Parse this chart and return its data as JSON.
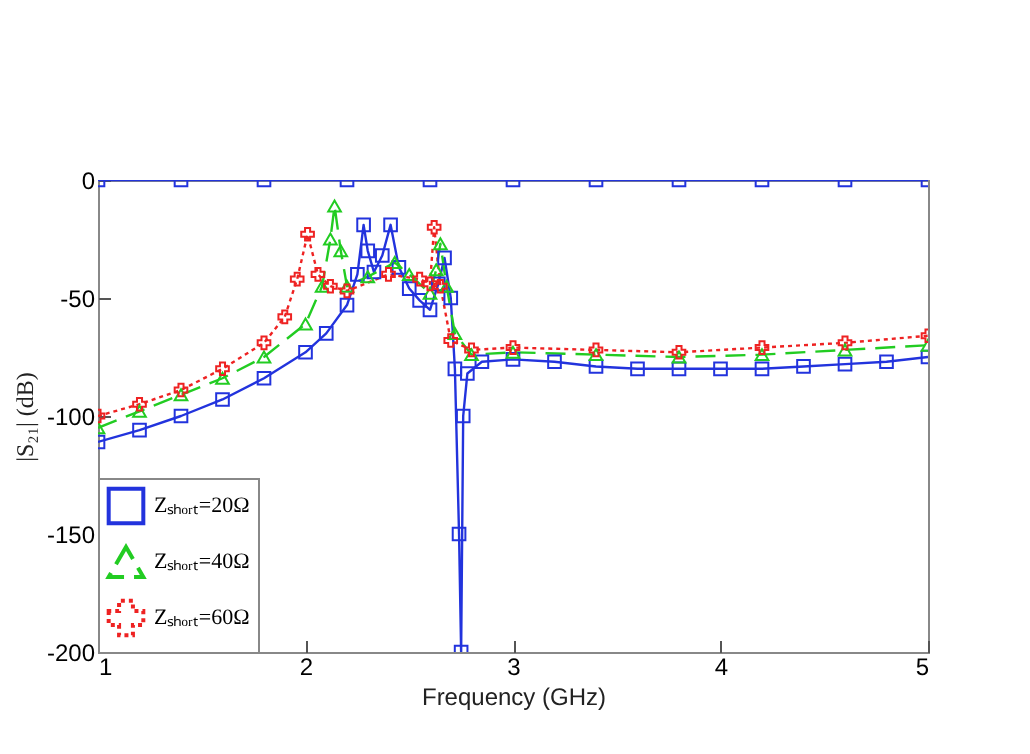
{
  "chart_data": {
    "type": "line",
    "xlabel": "Frequency (GHz)",
    "ylabel": "|S₂₁| (dB)",
    "xlim": [
      1,
      5
    ],
    "xticks": [
      1,
      2,
      3,
      4,
      5
    ],
    "ylim": [
      -200,
      0
    ],
    "yticks": [
      -200,
      -150,
      -100,
      -50,
      0
    ],
    "grid": false,
    "legend": "bottom left",
    "series": [
      {
        "name": "Zₛₕₒᵣₜ=20Ω",
        "color": "#2233dd",
        "line_style": "solid",
        "marker": "square",
        "x": [
          1,
          1.2,
          1.4,
          1.6,
          1.8,
          2.0,
          2.1,
          2.2,
          2.25,
          2.28,
          2.3,
          2.33,
          2.37,
          2.41,
          2.45,
          2.5,
          2.55,
          2.6,
          2.64,
          2.67,
          2.7,
          2.72,
          2.74,
          2.75,
          2.76,
          2.78,
          2.85,
          3.0,
          3.2,
          3.4,
          3.6,
          3.8,
          4.0,
          4.2,
          4.4,
          4.6,
          4.8,
          5.0
        ],
        "values": [
          -111,
          -106,
          -100,
          -93,
          -84,
          -73,
          -65,
          -53,
          -40,
          -19,
          -30,
          -39,
          -32,
          -19,
          -37,
          -46,
          -51,
          -55,
          -44,
          -33,
          -50,
          -80,
          -150,
          -200,
          -100,
          -82,
          -77,
          -76,
          -77,
          -79,
          -80,
          -80,
          -80,
          -80,
          -79,
          -78,
          -77,
          -75
        ]
      },
      {
        "name": "Zₛₕₒᵣₜ=40Ω",
        "color": "#22cc22",
        "line_style": "dashed",
        "marker": "triangle",
        "x": [
          1,
          1.2,
          1.4,
          1.6,
          1.8,
          2.0,
          2.08,
          2.12,
          2.14,
          2.17,
          2.2,
          2.3,
          2.43,
          2.5,
          2.6,
          2.63,
          2.65,
          2.68,
          2.72,
          2.8,
          3.0,
          3.4,
          3.8,
          4.2,
          4.6,
          5.0
        ],
        "values": [
          -105,
          -98,
          -91,
          -84,
          -75,
          -61,
          -45,
          -25,
          -11,
          -30,
          -45,
          -41,
          -35,
          -40,
          -48,
          -38,
          -27,
          -45,
          -65,
          -74,
          -73,
          -74,
          -75,
          -74,
          -72,
          -70
        ]
      },
      {
        "name": "Zₛₕₒᵣₜ=60Ω",
        "color": "#ee2222",
        "line_style": "dotted",
        "marker": "cross",
        "x": [
          1,
          1.2,
          1.4,
          1.6,
          1.8,
          1.9,
          1.96,
          2.01,
          2.06,
          2.12,
          2.2,
          2.4,
          2.55,
          2.6,
          2.62,
          2.65,
          2.7,
          2.8,
          3.0,
          3.4,
          3.8,
          4.2,
          4.6,
          5.0
        ],
        "values": [
          -100,
          -95,
          -89,
          -80,
          -69,
          -58,
          -42,
          -23,
          -40,
          -45,
          -47,
          -40,
          -42,
          -44,
          -20,
          -45,
          -68,
          -72,
          -71,
          -72,
          -73,
          -71,
          -69,
          -66
        ]
      },
      {
        "color": "#2233dd",
        "line_style": "solid",
        "marker": "square",
        "x": [
          1,
          1.4,
          1.8,
          2.2,
          2.6,
          3.0,
          3.4,
          3.8,
          4.2,
          4.6,
          5.0
        ],
        "values": [
          0,
          0,
          0,
          0,
          0,
          0,
          0,
          0,
          0,
          0,
          0
        ]
      }
    ]
  }
}
